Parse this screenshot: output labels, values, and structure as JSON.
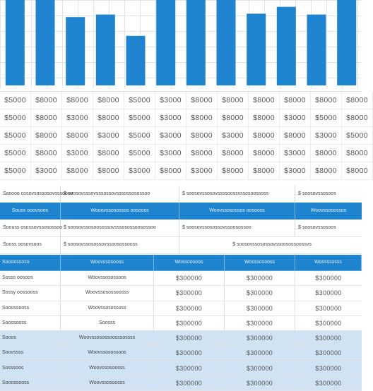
{
  "colors": {
    "bar": "#1e84cf",
    "header": "#1e84cf",
    "shaded_row": "#cfe3f4",
    "grid": "#e3e3e3"
  },
  "chart_data": {
    "type": "bar",
    "title": "",
    "xlabel": "",
    "ylabel": "",
    "grid": true,
    "ylim": [
      0,
      100
    ],
    "values": [
      100,
      100,
      80,
      83,
      58,
      100,
      100,
      100,
      84,
      92,
      83,
      100
    ]
  },
  "value_grid": {
    "rows": [
      [
        "$5000",
        "$8000",
        "$8000",
        "$8000",
        "$5000",
        "$3000",
        "$8000",
        "$8000",
        "$8000",
        "$8000",
        "$8000",
        "$8000"
      ],
      [
        "$5000",
        "$8000",
        "$3000",
        "$8000",
        "$5000",
        "$3000",
        "$8000",
        "$8000",
        "$8000",
        "$3000",
        "$5000",
        "$8000"
      ],
      [
        "$5000",
        "$8000",
        "$8000",
        "$3000",
        "$5000",
        "$3000",
        "$8000",
        "$3000",
        "$8000",
        "$8000",
        "$3000",
        "$5000"
      ],
      [
        "$5000",
        "$8000",
        "$3000",
        "$8000",
        "$5000",
        "$3000",
        "$8000",
        "$8000",
        "$8000",
        "$3000",
        "$8000",
        "$8000"
      ],
      [
        "$5000",
        "$3000",
        "$8000",
        "$8000",
        "$3000",
        "$8000",
        "$3000",
        "$8000",
        "$8000",
        "$3000",
        "$8000",
        "$8000"
      ]
    ]
  },
  "summary": {
    "row1": [
      "Sasooo cosovsossosovossooov",
      "$ soosovsssovsssossovsssossosossoo",
      "$ soosovssosovssssoossvssosoossoss",
      "$ soosovssosoos"
    ],
    "header": [
      "Souss ooovsoos",
      "Wooovssosossos oosooss",
      "Woovssosossos oosooss",
      "Woovssosossos"
    ],
    "row3": [
      "Soouss osossovssosossoo",
      "$ soosovssosoosossovsssosossoosossoo",
      "$ soosovssosossovssoosossoo",
      "$ soosovssosoos"
    ],
    "row4": [
      "Sooss oosovsoos",
      "$ soosovssosossovssoosossooss",
      "$ soosovssosossovssoosossoossvs"
    ]
  },
  "table": {
    "header": [
      "Soooossoso",
      "Woovssosooss",
      "Wossoosoos",
      "Wosssosooss",
      "Wossssosss"
    ],
    "rows": [
      {
        "shaded": false,
        "cells": [
          "Sosss oosoos",
          "Woovssosossoos",
          "$300000",
          "$300000",
          "$300000"
        ]
      },
      {
        "shaded": false,
        "cells": [
          "Sossy oossooss",
          "Woovssosossoosss",
          "$300000",
          "$300000",
          "$300000"
        ]
      },
      {
        "shaded": false,
        "cells": [
          "Sooossooss",
          "Woovssosossoss",
          "$300000",
          "$300000",
          "$300000"
        ]
      },
      {
        "shaded": false,
        "cells": [
          "Soossooss",
          "Soosss",
          "$300000",
          "$300000",
          "$300000"
        ]
      },
      {
        "shaded": true,
        "cells": [
          "Sooos",
          "Woovssosossoosssossss",
          "$300000",
          "$300000",
          "$300000"
        ]
      },
      {
        "shaded": true,
        "cells": [
          "Soovssss",
          "Woovssosossoos",
          "$300000",
          "$300000",
          "$300000"
        ]
      },
      {
        "shaded": true,
        "cells": [
          "Sosssoos",
          "Woovssosoosss",
          "$300000",
          "$300000",
          "$300000"
        ]
      },
      {
        "shaded": true,
        "cells": [
          "Sooossooss",
          "Woovssosoosss",
          "$300000",
          "$300000",
          "$300000"
        ]
      }
    ]
  }
}
